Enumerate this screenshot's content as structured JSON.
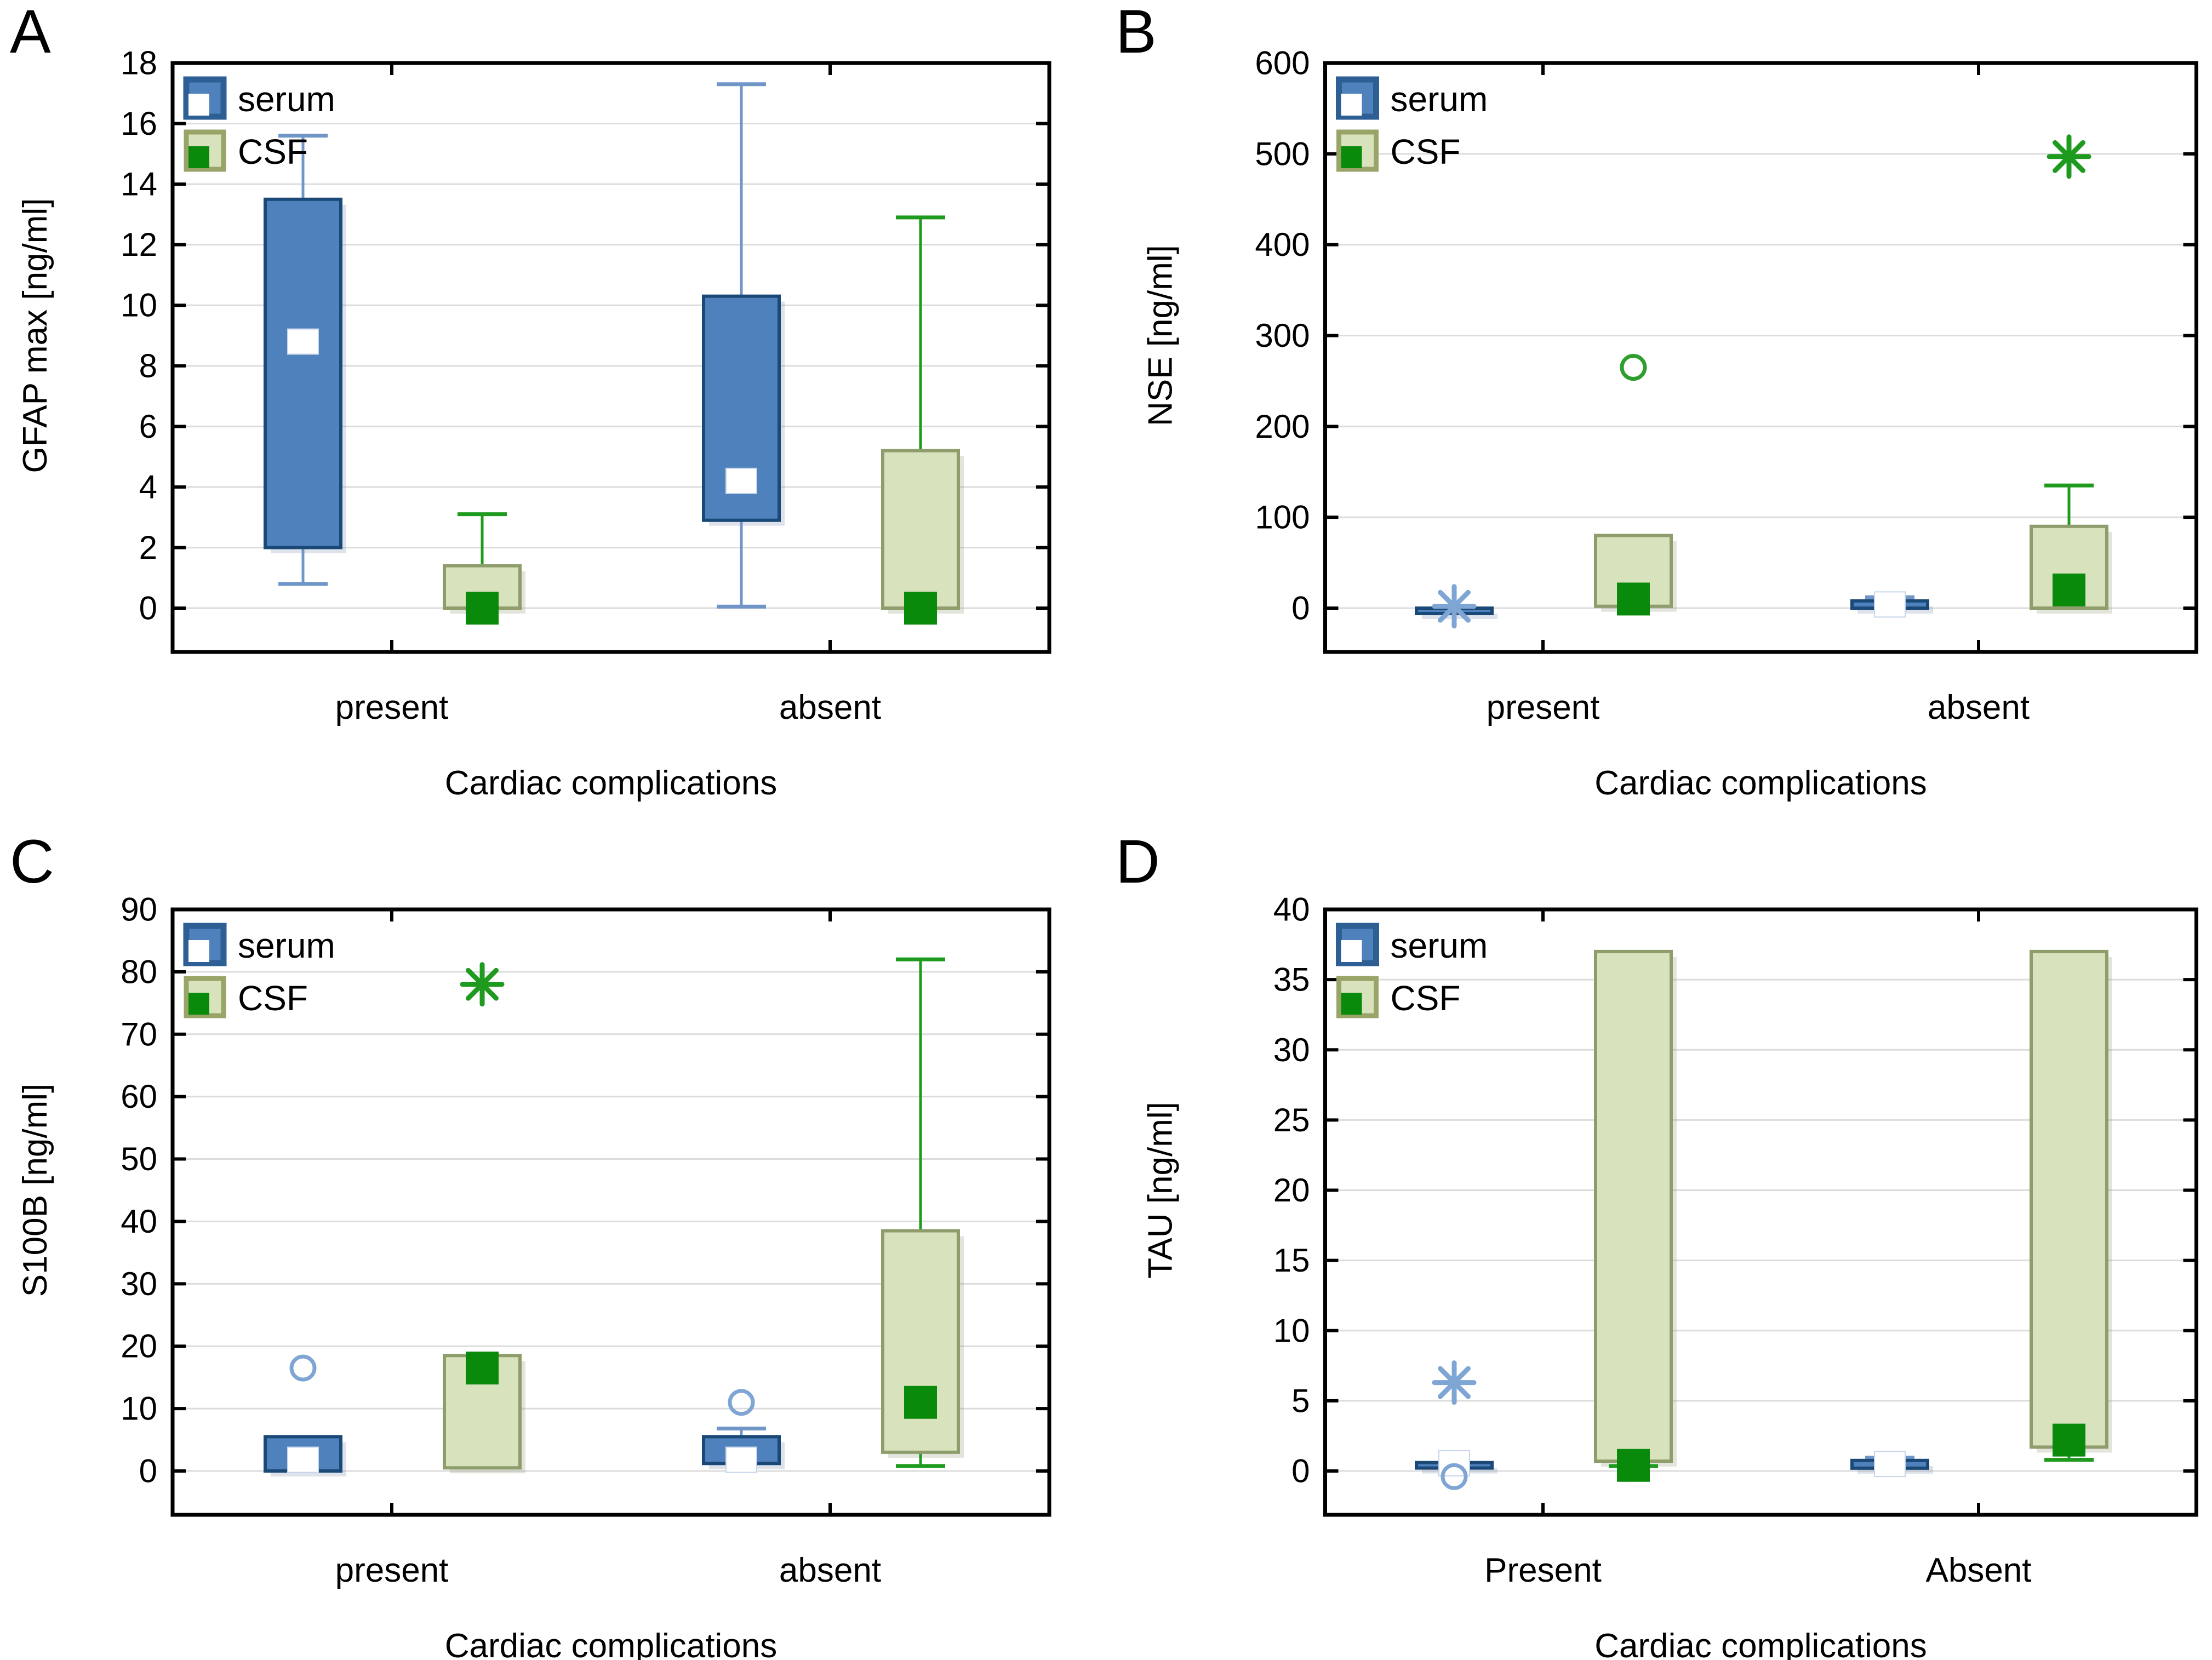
{
  "colors": {
    "background": "#ffffff",
    "axis": "#000000",
    "grid": "#dcdcdc",
    "serum_fill": "#4f81bd",
    "serum_border": "#1b4977",
    "serum_whisker": "#6f96c6",
    "serum_outlier": "#7fa5d4",
    "serum_marker": "#ffffff",
    "serum_shadow": "rgba(110,130,165,0.45)",
    "csf_fill": "#d8e2bd",
    "csf_border": "#8e9d6b",
    "csf_whisker": "#1e9b1e",
    "csf_outlier": "#2f9e2f",
    "csf_marker": "#0a8a0a",
    "csf_shadow": "rgba(130,140,100,0.45)"
  },
  "chart_data": [
    {
      "type": "box",
      "panel": "A",
      "ylabel": "GFAP max [ng/ml]",
      "xlabel": "Cardiac complications",
      "ylim": [
        0,
        18
      ],
      "ytick_step": 2,
      "grid": "horizontal",
      "legend_position": "top-left",
      "categories": [
        "present",
        "absent"
      ],
      "legend": [
        "serum",
        "CSF"
      ],
      "boxes": [
        {
          "category": "present",
          "series": "serum",
          "q1": 2.0,
          "q3": 13.5,
          "marker": 8.8,
          "whisker_low": 0.8,
          "whisker_high": 15.6,
          "points": []
        },
        {
          "category": "present",
          "series": "CSF",
          "q1": 0.0,
          "q3": 1.4,
          "marker": 0.0,
          "whisker_low": null,
          "whisker_high": 3.1,
          "points": []
        },
        {
          "category": "absent",
          "series": "serum",
          "q1": 2.9,
          "q3": 10.3,
          "marker": 4.2,
          "whisker_low": 0.05,
          "whisker_high": 17.3,
          "points": []
        },
        {
          "category": "absent",
          "series": "CSF",
          "q1": 0.0,
          "q3": 5.2,
          "marker": 0.0,
          "whisker_low": null,
          "whisker_high": 12.9,
          "points": []
        }
      ]
    },
    {
      "type": "box",
      "panel": "B",
      "ylabel": "NSE [ng/ml]",
      "xlabel": "Cardiac complications",
      "ylim": [
        0,
        600
      ],
      "ytick_step": 100,
      "grid": "horizontal",
      "legend_position": "top-left",
      "categories": [
        "present",
        "absent"
      ],
      "legend": [
        "serum",
        "CSF"
      ],
      "boxes": [
        {
          "category": "present",
          "series": "serum",
          "q1": 0,
          "q3": 0,
          "marker": null,
          "whisker_low": null,
          "whisker_high": null,
          "points": [
            {
              "value": 2,
              "symbol": "asterisk"
            }
          ]
        },
        {
          "category": "present",
          "series": "CSF",
          "q1": 2,
          "q3": 80,
          "marker": 10,
          "whisker_low": null,
          "whisker_high": null,
          "points": [
            {
              "value": 265,
              "symbol": "circle"
            }
          ]
        },
        {
          "category": "absent",
          "series": "serum",
          "q1": 0,
          "q3": 8,
          "marker": 4,
          "whisker_low": null,
          "whisker_high": 12,
          "points": []
        },
        {
          "category": "absent",
          "series": "CSF",
          "q1": 0,
          "q3": 90,
          "marker": 20,
          "whisker_low": null,
          "whisker_high": 135,
          "points": [
            {
              "value": 497,
              "symbol": "asterisk"
            }
          ]
        }
      ]
    },
    {
      "type": "box",
      "panel": "C",
      "ylabel": "S100B [ng/ml]",
      "xlabel": "Cardiac complications",
      "ylim": [
        0,
        90
      ],
      "ytick_step": 10,
      "grid": "horizontal",
      "legend_position": "top-left",
      "categories": [
        "present",
        "absent"
      ],
      "legend": [
        "serum",
        "CSF"
      ],
      "boxes": [
        {
          "category": "present",
          "series": "serum",
          "q1": 0,
          "q3": 5.5,
          "marker": 1.8,
          "whisker_low": null,
          "whisker_high": null,
          "points": [
            {
              "value": 16.5,
              "symbol": "circle"
            }
          ]
        },
        {
          "category": "present",
          "series": "CSF",
          "q1": 0.5,
          "q3": 18.5,
          "marker": 16.5,
          "whisker_low": null,
          "whisker_high": null,
          "points": [
            {
              "value": 78,
              "symbol": "asterisk"
            }
          ]
        },
        {
          "category": "absent",
          "series": "serum",
          "q1": 1.2,
          "q3": 5.5,
          "marker": 1.8,
          "whisker_low": null,
          "whisker_high": 6.8,
          "points": [
            {
              "value": 11,
              "symbol": "circle"
            }
          ]
        },
        {
          "category": "absent",
          "series": "CSF",
          "q1": 3,
          "q3": 38.5,
          "marker": 11,
          "whisker_low": 0.8,
          "whisker_high": 82,
          "points": []
        }
      ]
    },
    {
      "type": "box",
      "panel": "D",
      "ylabel": "TAU [ng/ml]",
      "xlabel": "Cardiac complications",
      "ylim": [
        0,
        40
      ],
      "ytick_step": 5,
      "grid": "horizontal",
      "legend_position": "top-left",
      "categories": [
        "Present",
        "Absent"
      ],
      "legend": [
        "serum",
        "CSF"
      ],
      "boxes": [
        {
          "category": "Present",
          "series": "serum",
          "q1": 0.5,
          "q3": 0.6,
          "marker": 0.55,
          "whisker_low": null,
          "whisker_high": null,
          "points": [
            {
              "value": -0.4,
              "symbol": "circle"
            },
            {
              "value": 6.3,
              "symbol": "asterisk"
            }
          ]
        },
        {
          "category": "Present",
          "series": "CSF",
          "q1": 0.7,
          "q3": 37,
          "marker": 0.4,
          "whisker_low": 0.35,
          "whisker_high": null,
          "points": []
        },
        {
          "category": "Absent",
          "series": "serum",
          "q1": 0.2,
          "q3": 0.75,
          "marker": 0.5,
          "whisker_low": null,
          "whisker_high": 0.95,
          "points": []
        },
        {
          "category": "Absent",
          "series": "CSF",
          "q1": 1.7,
          "q3": 37,
          "marker": 2.2,
          "whisker_low": 0.8,
          "whisker_high": null,
          "points": []
        }
      ]
    }
  ]
}
